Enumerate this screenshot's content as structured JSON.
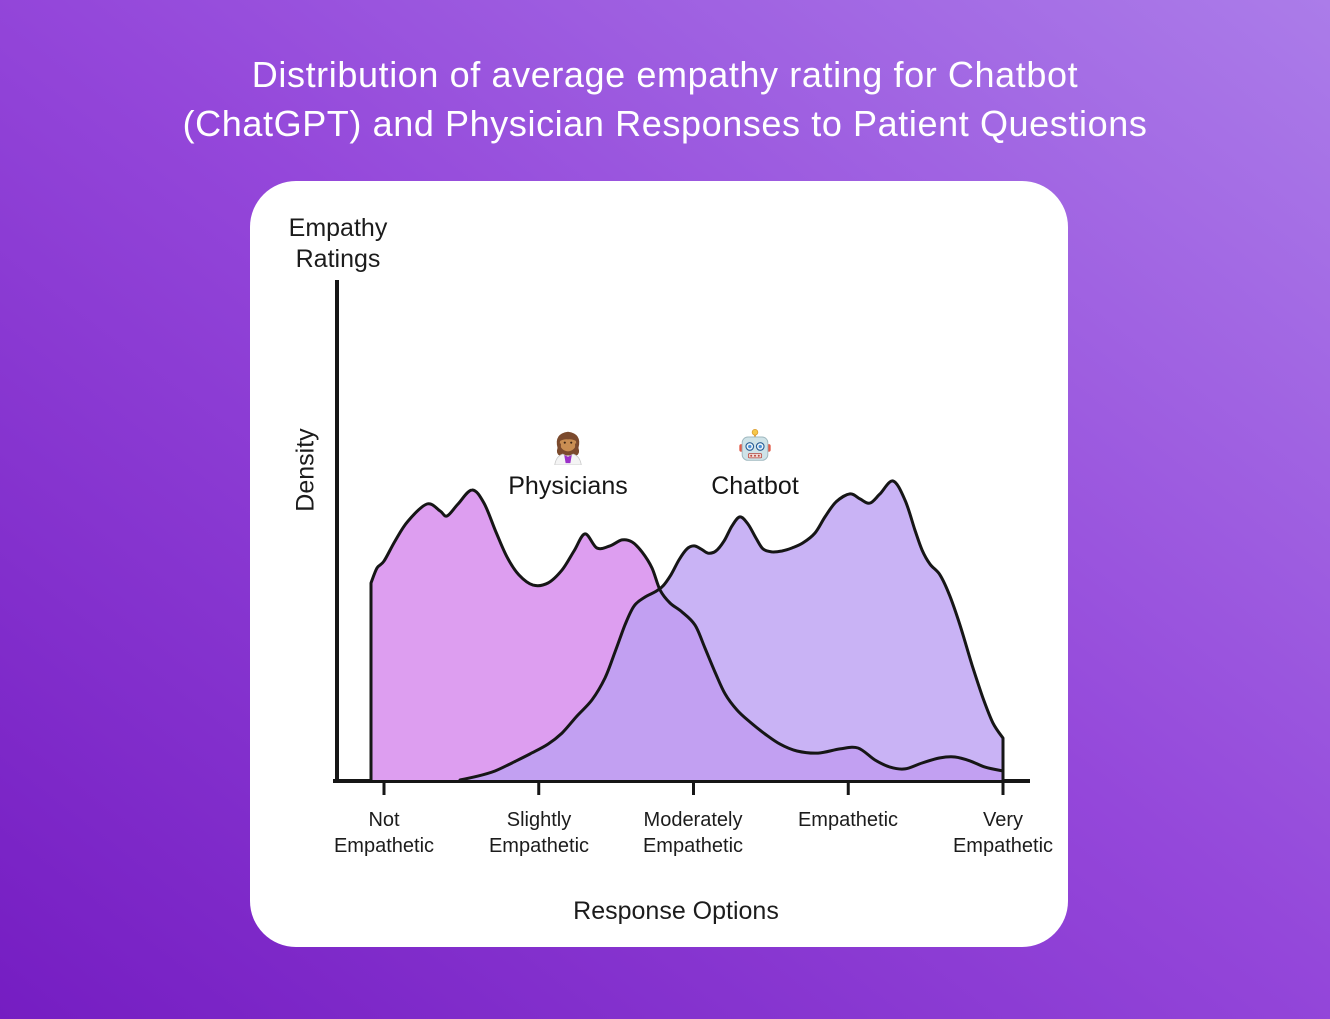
{
  "title": {
    "line1": "Distribution of average empathy rating for Chatbot",
    "line2": "(ChatGPT) and Physician Responses to Patient Questions"
  },
  "chart": {
    "y_axis_title": "Empathy\nRatings",
    "y_axis_label": "Density",
    "x_axis_label": "Response Options",
    "legend": [
      {
        "name": "Physicians",
        "icon": "woman-health-worker-emoji",
        "color": "#dd9ef0"
      },
      {
        "name": "Chatbot",
        "icon": "robot-emoji",
        "color": "#c8b3f5"
      }
    ]
  },
  "chart_data": {
    "type": "area",
    "title": "Distribution of average empathy rating for Chatbot (ChatGPT) and Physician Responses to Patient Questions",
    "xlabel": "Response Options",
    "ylabel": "Density",
    "categories": [
      "Not\nEmpathetic",
      "Slightly\nEmpathetic",
      "Moderately\nEmpathetic",
      "Empathetic",
      "Very\nEmpathetic"
    ],
    "x_units": "category index (0 = Not Empathetic ... 4 = Very Empathetic)",
    "y_units": "normalized density (0-1)",
    "xlim": [
      -0.3,
      4.17
    ],
    "ylim": [
      0,
      1.05
    ],
    "grid": false,
    "legend_position": "inside-top, emoji above name",
    "series": [
      {
        "name": "Physicians",
        "data_name": "physicians",
        "fill": "#dd9ef0",
        "edge_start": "vertical",
        "edge_end": "none",
        "points": [
          [
            -0.084,
            0.659
          ],
          [
            -0.045,
            0.709
          ],
          [
            0.0,
            0.732
          ],
          [
            0.071,
            0.799
          ],
          [
            0.155,
            0.866
          ],
          [
            0.278,
            0.923
          ],
          [
            0.362,
            0.9
          ],
          [
            0.407,
            0.883
          ],
          [
            0.478,
            0.923
          ],
          [
            0.569,
            0.97
          ],
          [
            0.646,
            0.926
          ],
          [
            0.724,
            0.829
          ],
          [
            0.795,
            0.746
          ],
          [
            0.872,
            0.686
          ],
          [
            0.963,
            0.652
          ],
          [
            1.06,
            0.659
          ],
          [
            1.15,
            0.702
          ],
          [
            1.228,
            0.766
          ],
          [
            1.299,
            0.823
          ],
          [
            1.376,
            0.776
          ],
          [
            1.46,
            0.783
          ],
          [
            1.538,
            0.803
          ],
          [
            1.603,
            0.796
          ],
          [
            1.667,
            0.763
          ],
          [
            1.732,
            0.709
          ],
          [
            1.784,
            0.635
          ],
          [
            1.848,
            0.592
          ],
          [
            1.926,
            0.562
          ],
          [
            2.01,
            0.518
          ],
          [
            2.074,
            0.441
          ],
          [
            2.139,
            0.361
          ],
          [
            2.204,
            0.288
          ],
          [
            2.281,
            0.234
          ],
          [
            2.365,
            0.194
          ],
          [
            2.462,
            0.154
          ],
          [
            2.559,
            0.12
          ],
          [
            2.669,
            0.097
          ],
          [
            2.805,
            0.09
          ],
          [
            2.947,
            0.104
          ],
          [
            3.063,
            0.107
          ],
          [
            3.173,
            0.067
          ],
          [
            3.27,
            0.043
          ],
          [
            3.367,
            0.037
          ],
          [
            3.477,
            0.057
          ],
          [
            3.593,
            0.074
          ],
          [
            3.69,
            0.077
          ],
          [
            3.787,
            0.064
          ],
          [
            3.884,
            0.043
          ],
          [
            4.0,
            0.03
          ]
        ]
      },
      {
        "name": "Chatbot",
        "data_name": "chatbot",
        "fill": "rgba(187,160,243,0.8)",
        "edge_start": "none",
        "edge_end": "vertical",
        "points": [
          [
            0.491,
            0.0
          ],
          [
            0.607,
            0.013
          ],
          [
            0.717,
            0.03
          ],
          [
            0.827,
            0.057
          ],
          [
            0.943,
            0.087
          ],
          [
            1.06,
            0.12
          ],
          [
            1.15,
            0.157
          ],
          [
            1.247,
            0.214
          ],
          [
            1.344,
            0.268
          ],
          [
            1.428,
            0.341
          ],
          [
            1.493,
            0.428
          ],
          [
            1.557,
            0.518
          ],
          [
            1.616,
            0.582
          ],
          [
            1.687,
            0.612
          ],
          [
            1.751,
            0.629
          ],
          [
            1.803,
            0.649
          ],
          [
            1.854,
            0.686
          ],
          [
            1.906,
            0.736
          ],
          [
            1.958,
            0.773
          ],
          [
            2.003,
            0.783
          ],
          [
            2.048,
            0.773
          ],
          [
            2.094,
            0.759
          ],
          [
            2.145,
            0.766
          ],
          [
            2.197,
            0.799
          ],
          [
            2.249,
            0.85
          ],
          [
            2.3,
            0.88
          ],
          [
            2.352,
            0.856
          ],
          [
            2.404,
            0.809
          ],
          [
            2.449,
            0.773
          ],
          [
            2.507,
            0.763
          ],
          [
            2.572,
            0.766
          ],
          [
            2.636,
            0.776
          ],
          [
            2.707,
            0.793
          ],
          [
            2.785,
            0.826
          ],
          [
            2.85,
            0.88
          ],
          [
            2.921,
            0.93
          ],
          [
            3.011,
            0.957
          ],
          [
            3.076,
            0.94
          ],
          [
            3.14,
            0.926
          ],
          [
            3.205,
            0.957
          ],
          [
            3.289,
            1.0
          ],
          [
            3.367,
            0.936
          ],
          [
            3.431,
            0.836
          ],
          [
            3.477,
            0.769
          ],
          [
            3.528,
            0.722
          ],
          [
            3.593,
            0.686
          ],
          [
            3.657,
            0.615
          ],
          [
            3.722,
            0.518
          ],
          [
            3.8,
            0.385
          ],
          [
            3.871,
            0.274
          ],
          [
            3.935,
            0.191
          ],
          [
            4.0,
            0.14
          ]
        ]
      }
    ]
  },
  "colors": {
    "background_bottom_left": "#751dc2",
    "background_mid": "#9447da",
    "background_top_right": "#ab7ce9",
    "card": "#ffffff",
    "title_text": "#ffffff",
    "label_text": "#1c1c1c",
    "axis_stroke": "#161616",
    "curve_stroke": "#161616",
    "physicians_fill": "#dd9ef0",
    "chatbot_fill_rgba": "rgba(187,160,243,0.8)",
    "overlap_apparent": "#c2a0f2"
  }
}
